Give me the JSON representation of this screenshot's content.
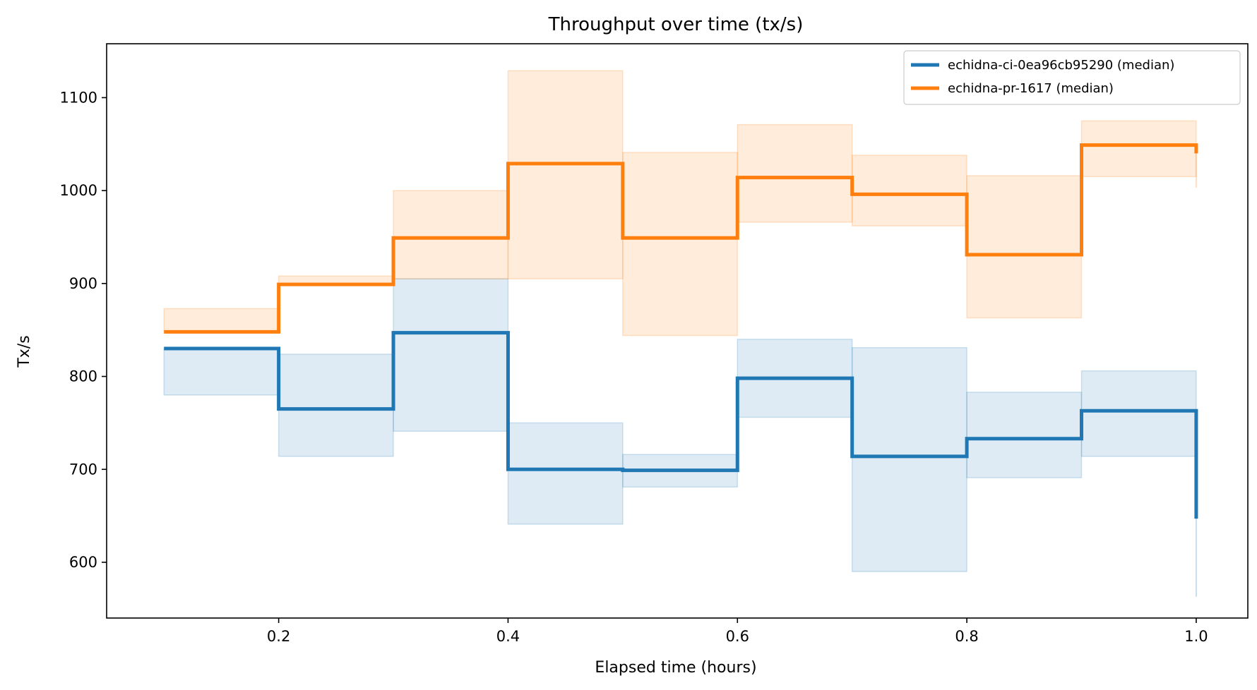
{
  "chart_data": {
    "type": "line",
    "subtype": "step",
    "title": "Throughput over time (tx/s)",
    "xlabel": "Elapsed time (hours)",
    "ylabel": "Tx/s",
    "xlim": [
      0.05,
      1.045
    ],
    "ylim": [
      540,
      1158
    ],
    "xticks": [
      0.2,
      0.4,
      0.6,
      0.8,
      1.0
    ],
    "xtick_labels": [
      "0.2",
      "0.4",
      "0.6",
      "0.8",
      "1.0"
    ],
    "yticks": [
      600,
      700,
      800,
      900,
      1000,
      1100
    ],
    "ytick_labels": [
      "600",
      "700",
      "800",
      "900",
      "1000",
      "1100"
    ],
    "grid": false,
    "legend_position": "top-right",
    "x": [
      0.1,
      0.2,
      0.3,
      0.4,
      0.5,
      0.6,
      0.7,
      0.8,
      0.9,
      1.0
    ],
    "series": [
      {
        "name": "echidna-ci-0ea96cb95290 (median)",
        "color": "#1f77b4",
        "median": [
          830,
          765,
          847,
          700,
          699,
          798,
          714,
          733,
          763,
          647
        ],
        "lower": [
          780,
          714,
          741,
          641,
          681,
          756,
          590,
          691,
          714,
          563
        ],
        "upper": [
          830,
          824,
          905,
          750,
          716,
          840,
          831,
          783,
          806,
          764
        ]
      },
      {
        "name": "echidna-pr-1617 (median)",
        "color": "#ff7f0e",
        "median": [
          848,
          899,
          949,
          1029,
          949,
          1014,
          996,
          931,
          1049,
          1040
        ],
        "lower": [
          848,
          899,
          905,
          905,
          844,
          966,
          962,
          863,
          1015,
          1003
        ],
        "upper": [
          873,
          908,
          1000,
          1129,
          1041,
          1071,
          1038,
          1016,
          1075,
          1049
        ]
      }
    ]
  }
}
